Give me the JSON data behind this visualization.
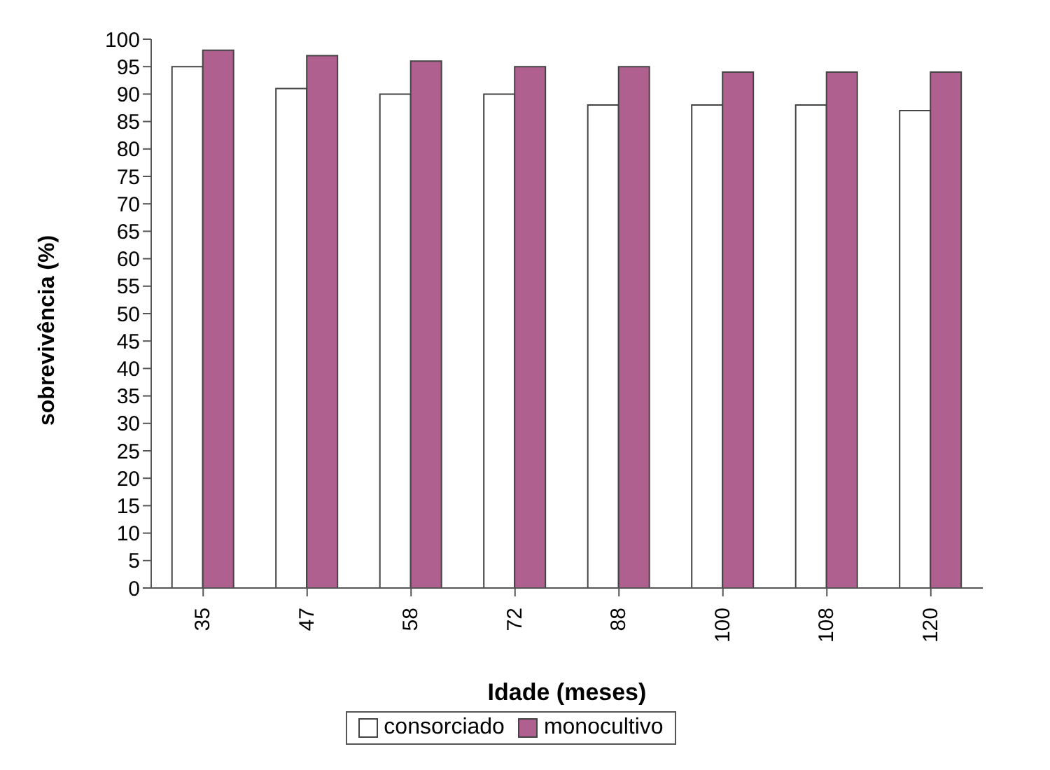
{
  "chart_data": {
    "type": "bar",
    "xlabel": "Idade (meses)",
    "ylabel": "sobrevivência (%)",
    "categories": [
      "35",
      "47",
      "58",
      "72",
      "88",
      "100",
      "108",
      "120"
    ],
    "series": [
      {
        "name": "consorciado",
        "color": "#ffffff",
        "values": [
          95,
          91,
          90,
          90,
          88,
          88,
          88,
          87
        ]
      },
      {
        "name": "monocultivo",
        "color": "#b0608f",
        "values": [
          98,
          97,
          96,
          95,
          95,
          94,
          94,
          94
        ]
      }
    ],
    "ylim": [
      0,
      100
    ],
    "yticks": [
      0,
      5,
      10,
      15,
      20,
      25,
      30,
      35,
      40,
      45,
      50,
      55,
      60,
      65,
      70,
      75,
      80,
      85,
      90,
      95,
      100
    ],
    "grid": false,
    "legend": "bottom"
  }
}
